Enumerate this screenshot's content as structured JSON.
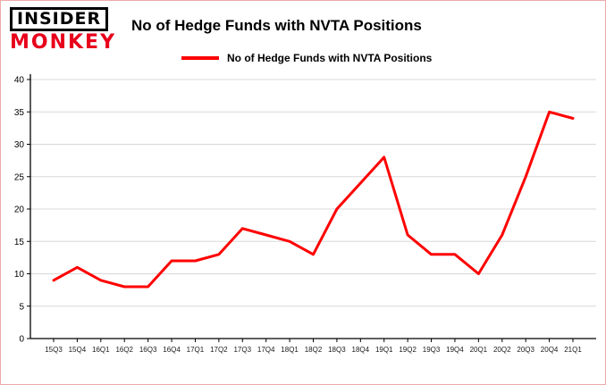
{
  "brand": {
    "line1": "INSIDER",
    "line2": "MONKEY"
  },
  "header": {
    "title": "No of Hedge Funds with NVTA Positions"
  },
  "legend": {
    "label": "No of Hedge Funds with NVTA Positions",
    "color": "#ff0000"
  },
  "chart_data": {
    "type": "line",
    "title": "No of Hedge Funds with NVTA Positions",
    "xlabel": "",
    "ylabel": "",
    "categories": [
      "15Q3",
      "15Q4",
      "16Q1",
      "16Q2",
      "16Q3",
      "16Q4",
      "17Q1",
      "17Q2",
      "17Q3",
      "17Q4",
      "18Q1",
      "18Q2",
      "18Q3",
      "18Q4",
      "19Q1",
      "19Q2",
      "19Q3",
      "19Q4",
      "20Q1",
      "20Q2",
      "20Q3",
      "20Q4",
      "21Q1"
    ],
    "series": [
      {
        "name": "No of Hedge Funds with NVTA Positions",
        "color": "#ff0000",
        "values": [
          9,
          11,
          9,
          8,
          8,
          12,
          12,
          13,
          17,
          16,
          15,
          13,
          20,
          24,
          28,
          16,
          13,
          13,
          10,
          16,
          25,
          35,
          34
        ]
      }
    ],
    "ylim": [
      0,
      40
    ],
    "yticks": [
      0,
      5,
      10,
      15,
      20,
      25,
      30,
      35,
      40
    ],
    "grid": true,
    "legend_position": "top"
  },
  "colors": {
    "line": "#ff0000",
    "grid": "#d8d8d8",
    "axis": "#000000",
    "background": "#ffffff",
    "border": "#eda9a9",
    "brand_red": "#e8001c"
  }
}
